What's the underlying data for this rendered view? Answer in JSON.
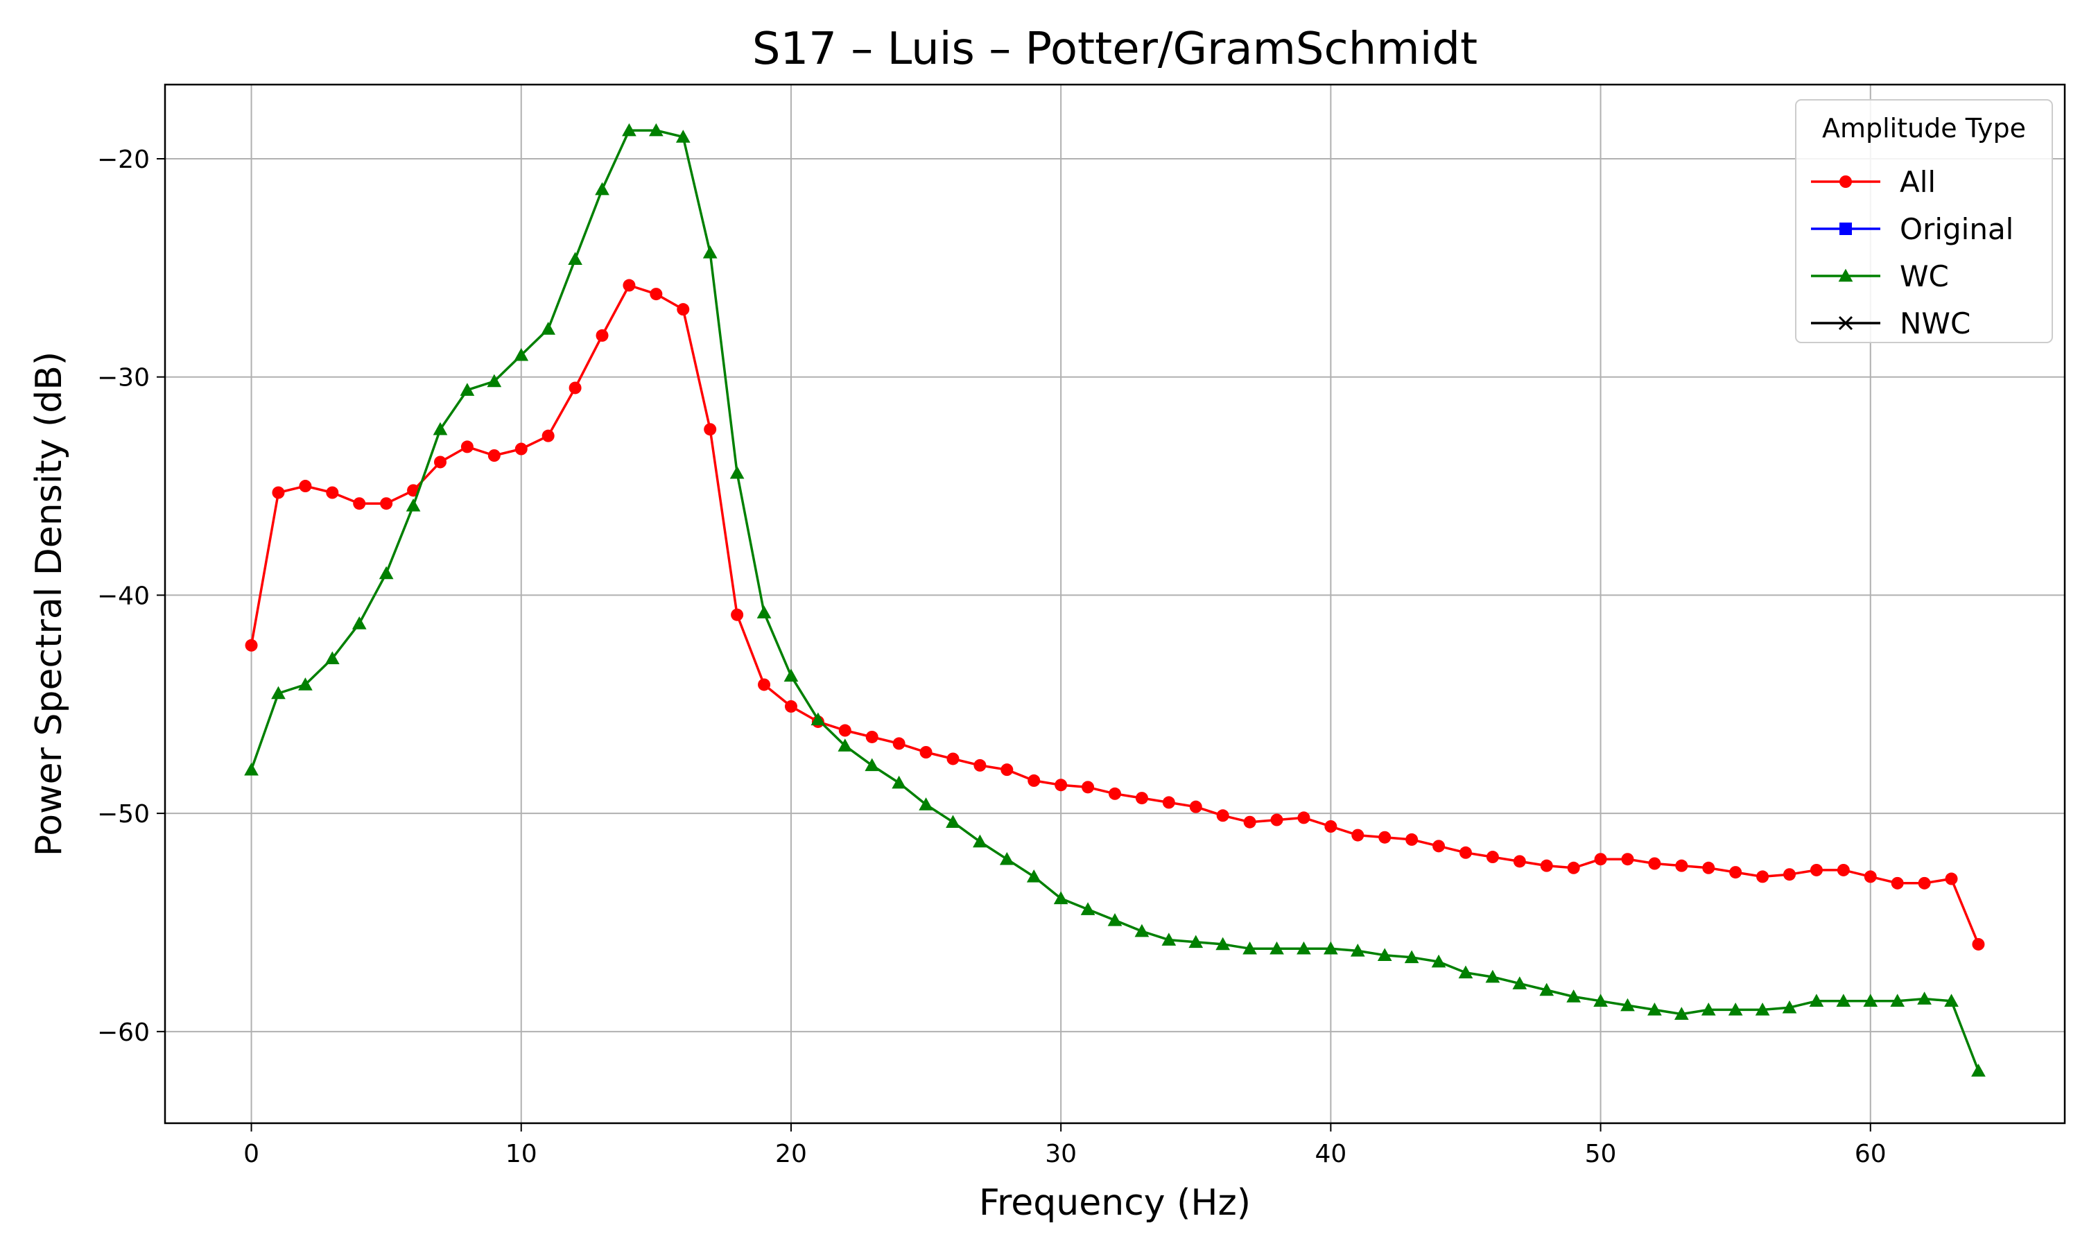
{
  "chart_data": {
    "type": "line",
    "title": "S17 – Luis – Potter/GramSchmidt",
    "xlabel": "Frequency (Hz)",
    "ylabel": "Power Spectral Density (dB)",
    "xlim": [
      -3.2,
      67.2
    ],
    "ylim": [
      -64.2,
      -16.6
    ],
    "xticks": [
      0,
      10,
      20,
      30,
      40,
      50,
      60
    ],
    "yticks": [
      -20,
      -30,
      -40,
      -50,
      -60
    ],
    "xtick_labels": [
      "0",
      "10",
      "20",
      "30",
      "40",
      "50",
      "60"
    ],
    "ytick_labels": [
      "−20",
      "−30",
      "−40",
      "−50",
      "−60"
    ],
    "grid": true,
    "legend": {
      "title": "Amplitude Type",
      "placement": "top-right",
      "entries": [
        {
          "label": "All",
          "color": "#ff0000",
          "marker": "circle"
        },
        {
          "label": "Original",
          "color": "#0000ff",
          "marker": "square"
        },
        {
          "label": "WC",
          "color": "#008000",
          "marker": "triangle"
        },
        {
          "label": "NWC",
          "color": "#000000",
          "marker": "x"
        }
      ]
    },
    "series": [
      {
        "name": "All",
        "color": "#ff0000",
        "marker": "circle",
        "x": [
          0,
          1,
          2,
          3,
          4,
          5,
          6,
          7,
          8,
          9,
          10,
          11,
          12,
          13,
          14,
          15,
          16,
          17,
          18,
          19,
          20,
          21,
          22,
          23,
          24,
          25,
          26,
          27,
          28,
          29,
          30,
          31,
          32,
          33,
          34,
          35,
          36,
          37,
          38,
          39,
          40,
          41,
          42,
          43,
          44,
          45,
          46,
          47,
          48,
          49,
          50,
          51,
          52,
          53,
          54,
          55,
          56,
          57,
          58,
          59,
          60,
          61,
          62,
          63,
          64
        ],
        "y": [
          -42.3,
          -35.3,
          -35.0,
          -35.3,
          -35.8,
          -35.8,
          -35.2,
          -33.9,
          -33.2,
          -33.6,
          -33.3,
          -32.7,
          -30.5,
          -28.1,
          -25.8,
          -26.2,
          -26.9,
          -32.4,
          -40.9,
          -44.1,
          -45.1,
          -45.8,
          -46.2,
          -46.5,
          -46.8,
          -47.2,
          -47.5,
          -47.8,
          -48.0,
          -48.5,
          -48.7,
          -48.8,
          -49.1,
          -49.3,
          -49.5,
          -49.7,
          -50.1,
          -50.4,
          -50.3,
          -50.2,
          -50.6,
          -51.0,
          -51.1,
          -51.2,
          -51.5,
          -51.8,
          -52.0,
          -52.2,
          -52.4,
          -52.5,
          -52.1,
          -52.1,
          -52.3,
          -52.4,
          -52.5,
          -52.7,
          -52.9,
          -52.8,
          -52.6,
          -52.6,
          -52.9,
          -53.2,
          -53.2,
          -53.0,
          -56.0
        ]
      },
      {
        "name": "Original",
        "color": "#0000ff",
        "marker": "square",
        "x": [],
        "y": []
      },
      {
        "name": "WC",
        "color": "#008000",
        "marker": "triangle",
        "x": [
          0,
          1,
          2,
          3,
          4,
          5,
          6,
          7,
          8,
          9,
          10,
          11,
          12,
          13,
          14,
          15,
          16,
          17,
          18,
          19,
          20,
          21,
          22,
          23,
          24,
          25,
          26,
          27,
          28,
          29,
          30,
          31,
          32,
          33,
          34,
          35,
          36,
          37,
          38,
          39,
          40,
          41,
          42,
          43,
          44,
          45,
          46,
          47,
          48,
          49,
          50,
          51,
          52,
          53,
          54,
          55,
          56,
          57,
          58,
          59,
          60,
          61,
          62,
          63,
          64
        ],
        "y": [
          -48.0,
          -44.5,
          -44.1,
          -42.9,
          -41.3,
          -39.0,
          -35.9,
          -32.4,
          -30.6,
          -30.2,
          -29.0,
          -27.8,
          -24.6,
          -21.4,
          -18.7,
          -18.7,
          -19.0,
          -24.3,
          -34.4,
          -40.8,
          -43.7,
          -45.7,
          -46.9,
          -47.8,
          -48.6,
          -49.6,
          -50.4,
          -51.3,
          -52.1,
          -52.9,
          -53.9,
          -54.4,
          -54.9,
          -55.4,
          -55.8,
          -55.9,
          -56.0,
          -56.2,
          -56.2,
          -56.2,
          -56.2,
          -56.3,
          -56.5,
          -56.6,
          -56.8,
          -57.3,
          -57.5,
          -57.8,
          -58.1,
          -58.4,
          -58.6,
          -58.8,
          -59.0,
          -59.2,
          -59.0,
          -59.0,
          -59.0,
          -58.9,
          -58.6,
          -58.6,
          -58.6,
          -58.6,
          -58.5,
          -58.6,
          -61.8
        ]
      },
      {
        "name": "NWC",
        "color": "#000000",
        "marker": "x",
        "x": [],
        "y": []
      }
    ]
  }
}
